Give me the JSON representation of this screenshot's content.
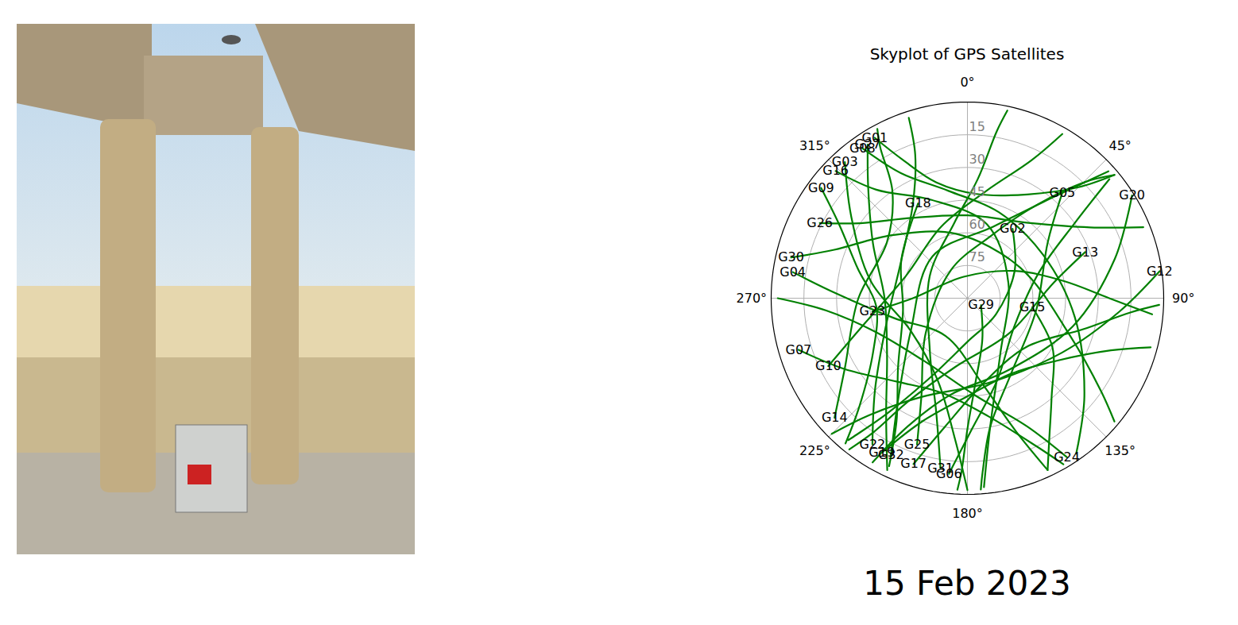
{
  "chart_data": {
    "type": "polar",
    "title": "Skyplot of GPS Satellites",
    "caption": "15 Feb 2023",
    "color": "#008000",
    "grid": true,
    "elevation_lim": [
      0,
      90
    ],
    "elevation_ticks": [
      15,
      30,
      45,
      60,
      75
    ],
    "azimuth_ticks": [
      {
        "value": 0,
        "label": "0°"
      },
      {
        "value": 45,
        "label": "45°"
      },
      {
        "value": 90,
        "label": "90°"
      },
      {
        "value": 135,
        "label": "135°"
      },
      {
        "value": 180,
        "label": "180°"
      },
      {
        "value": 225,
        "label": "225°"
      },
      {
        "value": 270,
        "label": "270°"
      },
      {
        "value": 315,
        "label": "315°"
      }
    ],
    "series": [
      {
        "name": "G01",
        "values": [
          [
            330,
            5
          ],
          [
            335,
            20
          ],
          [
            345,
            35
          ],
          [
            5,
            42
          ],
          [
            30,
            35
          ],
          [
            45,
            18
          ],
          [
            50,
            2
          ]
        ]
      },
      {
        "name": "G27",
        "values": [
          [
            327,
            6
          ],
          [
            318,
            22
          ],
          [
            300,
            40
          ],
          [
            270,
            52
          ],
          [
            235,
            45
          ],
          [
            215,
            25
          ],
          [
            205,
            3
          ]
        ]
      },
      {
        "name": "G08",
        "values": [
          [
            325,
            6
          ],
          [
            332,
            25
          ],
          [
            350,
            40
          ],
          [
            20,
            48
          ],
          [
            60,
            50
          ],
          [
            100,
            40
          ],
          [
            130,
            20
          ],
          [
            145,
            3
          ]
        ]
      },
      {
        "name": "G03",
        "values": [
          [
            318,
            6
          ],
          [
            305,
            25
          ],
          [
            280,
            45
          ],
          [
            240,
            60
          ],
          [
            200,
            50
          ],
          [
            185,
            25
          ],
          [
            180,
            2
          ]
        ]
      },
      {
        "name": "G16",
        "values": [
          [
            314,
            6
          ],
          [
            320,
            25
          ],
          [
            340,
            42
          ],
          [
            15,
            55
          ],
          [
            70,
            70
          ],
          [
            150,
            60
          ],
          [
            170,
            30
          ],
          [
            175,
            3
          ]
        ]
      },
      {
        "name": "G09",
        "values": [
          [
            307,
            6
          ],
          [
            300,
            22
          ],
          [
            285,
            38
          ],
          [
            265,
            48
          ],
          [
            240,
            40
          ],
          [
            225,
            20
          ],
          [
            220,
            3
          ]
        ]
      },
      {
        "name": "G26",
        "values": [
          [
            297,
            14
          ],
          [
            305,
            30
          ],
          [
            325,
            45
          ],
          [
            0,
            52
          ],
          [
            40,
            45
          ],
          [
            60,
            25
          ],
          [
            68,
            3
          ]
        ]
      },
      {
        "name": "G30",
        "values": [
          [
            283,
            7
          ],
          [
            290,
            25
          ],
          [
            310,
            45
          ],
          [
            350,
            60
          ],
          [
            60,
            62
          ],
          [
            110,
            40
          ],
          [
            125,
            15
          ],
          [
            130,
            2
          ]
        ]
      },
      {
        "name": "G04",
        "values": [
          [
            278.5,
            9
          ],
          [
            272,
            30
          ],
          [
            255,
            55
          ],
          [
            210,
            70
          ],
          [
            170,
            50
          ],
          [
            160,
            25
          ],
          [
            155,
            3
          ]
        ]
      },
      {
        "name": "G07",
        "values": [
          [
            253,
            9
          ],
          [
            240,
            25
          ],
          [
            220,
            40
          ],
          [
            195,
            45
          ],
          [
            170,
            35
          ],
          [
            155,
            15
          ],
          [
            150,
            2
          ]
        ]
      },
      {
        "name": "G10",
        "values": [
          [
            244,
            19
          ],
          [
            255,
            40
          ],
          [
            290,
            60
          ],
          [
            340,
            55
          ],
          [
            10,
            40
          ],
          [
            25,
            20
          ],
          [
            30,
            3
          ]
        ]
      },
      {
        "name": "G14",
        "values": [
          [
            228,
            8
          ],
          [
            240,
            25
          ],
          [
            270,
            40
          ],
          [
            305,
            45
          ],
          [
            325,
            30
          ],
          [
            330,
            10
          ],
          [
            332,
            2
          ]
        ]
      },
      {
        "name": "G22",
        "values": [
          [
            213,
            10
          ],
          [
            225,
            30
          ],
          [
            250,
            50
          ],
          [
            300,
            55
          ],
          [
            330,
            40
          ],
          [
            340,
            20
          ],
          [
            342,
            3
          ]
        ]
      },
      {
        "name": "G19",
        "values": [
          [
            209,
            9
          ],
          [
            200,
            30
          ],
          [
            180,
            45
          ],
          [
            150,
            50
          ],
          [
            125,
            40
          ],
          [
            110,
            20
          ],
          [
            105,
            3
          ]
        ]
      },
      {
        "name": "G32",
        "values": [
          [
            206,
            10
          ],
          [
            215,
            35
          ],
          [
            240,
            60
          ],
          [
            320,
            65
          ],
          [
            20,
            55
          ],
          [
            40,
            30
          ],
          [
            48,
            3
          ]
        ]
      },
      {
        "name": "G25",
        "values": [
          [
            199,
            19
          ],
          [
            205,
            40
          ],
          [
            230,
            65
          ],
          [
            330,
            75
          ],
          [
            20,
            60
          ],
          [
            35,
            40
          ],
          [
            45,
            15
          ],
          [
            50,
            2
          ]
        ]
      },
      {
        "name": "G17",
        "values": [
          [
            198,
            10
          ],
          [
            190,
            30
          ],
          [
            170,
            50
          ],
          [
            130,
            55
          ],
          [
            105,
            35
          ],
          [
            95,
            15
          ],
          [
            92,
            2
          ]
        ]
      },
      {
        "name": "G31",
        "values": [
          [
            189,
            11
          ],
          [
            195,
            35
          ],
          [
            215,
            60
          ],
          [
            300,
            70
          ],
          [
            350,
            55
          ],
          [
            5,
            35
          ],
          [
            10,
            12
          ],
          [
            12,
            2
          ]
        ]
      },
      {
        "name": "G06",
        "values": [
          [
            186,
            9
          ],
          [
            178,
            30
          ],
          [
            160,
            50
          ],
          [
            120,
            65
          ],
          [
            70,
            55
          ],
          [
            55,
            30
          ],
          [
            50,
            5
          ]
        ]
      },
      {
        "name": "G24",
        "values": [
          [
            148,
            4
          ],
          [
            155,
            25
          ],
          [
            175,
            45
          ],
          [
            215,
            55
          ],
          [
            250,
            45
          ],
          [
            265,
            25
          ],
          [
            270,
            3
          ]
        ]
      },
      {
        "name": "G12",
        "values": [
          [
            82,
            1
          ],
          [
            95,
            20
          ],
          [
            120,
            40
          ],
          [
            165,
            50
          ],
          [
            205,
            40
          ],
          [
            220,
            20
          ],
          [
            225,
            2
          ]
        ]
      },
      {
        "name": "G20",
        "values": [
          [
            58,
            1
          ],
          [
            75,
            20
          ],
          [
            105,
            40
          ],
          [
            150,
            52
          ],
          [
            190,
            45
          ],
          [
            205,
            25
          ],
          [
            210,
            3
          ]
        ]
      },
      {
        "name": "G13",
        "values": [
          [
            68.6,
            32
          ],
          [
            80,
            50
          ],
          [
            130,
            65
          ],
          [
            190,
            58
          ],
          [
            210,
            35
          ],
          [
            215,
            15
          ],
          [
            218,
            2
          ]
        ]
      },
      {
        "name": "G05",
        "values": [
          [
            42,
            25
          ],
          [
            55,
            45
          ],
          [
            100,
            58
          ],
          [
            150,
            50
          ],
          [
            170,
            30
          ],
          [
            175,
            10
          ],
          [
            176,
            2
          ]
        ]
      },
      {
        "name": "G02",
        "values": [
          [
            33,
            52
          ],
          [
            60,
            65
          ],
          [
            120,
            75
          ],
          [
            180,
            70
          ],
          [
            205,
            50
          ],
          [
            215,
            25
          ],
          [
            220,
            5
          ]
        ]
      },
      {
        "name": "G18",
        "values": [
          [
            332.5,
            41
          ],
          [
            300,
            55
          ],
          [
            260,
            60
          ],
          [
            225,
            45
          ],
          [
            210,
            25
          ],
          [
            205,
            5
          ]
        ]
      },
      {
        "name": "G23",
        "values": [
          [
            262,
            46
          ],
          [
            270,
            65
          ],
          [
            350,
            80
          ],
          [
            60,
            65
          ],
          [
            80,
            45
          ],
          [
            90,
            25
          ],
          [
            95,
            5
          ]
        ]
      },
      {
        "name": "G29",
        "values": [
          [
            117,
            83
          ],
          [
            160,
            70
          ],
          [
            175,
            50
          ],
          [
            180,
            30
          ],
          [
            182,
            10
          ],
          [
            183,
            2
          ]
        ]
      },
      {
        "name": "G15",
        "values": [
          [
            98,
            60
          ],
          [
            120,
            45
          ],
          [
            140,
            30
          ],
          [
            150,
            15
          ],
          [
            155,
            3
          ]
        ]
      }
    ]
  }
}
